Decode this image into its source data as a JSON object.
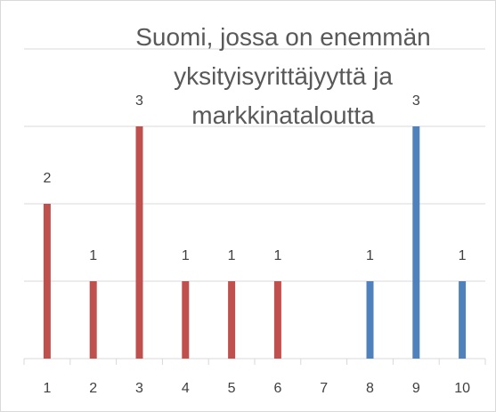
{
  "chart_data": {
    "type": "bar",
    "title": "Suomi, jossa on enemmän yksityisyrittäjyyttä ja markkinataloutta",
    "categories": [
      "1",
      "2",
      "3",
      "4",
      "5",
      "6",
      "7",
      "8",
      "9",
      "10"
    ],
    "values": [
      2,
      1,
      3,
      1,
      1,
      1,
      null,
      1,
      3,
      1
    ],
    "colors": [
      "#c0504d",
      "#c0504d",
      "#c0504d",
      "#c0504d",
      "#c0504d",
      "#c0504d",
      "#c0504d",
      "#4f81bd",
      "#4f81bd",
      "#4f81bd"
    ],
    "ylim": [
      0,
      4
    ],
    "yticks": [
      0,
      1,
      2,
      3,
      4
    ],
    "grid": true
  }
}
